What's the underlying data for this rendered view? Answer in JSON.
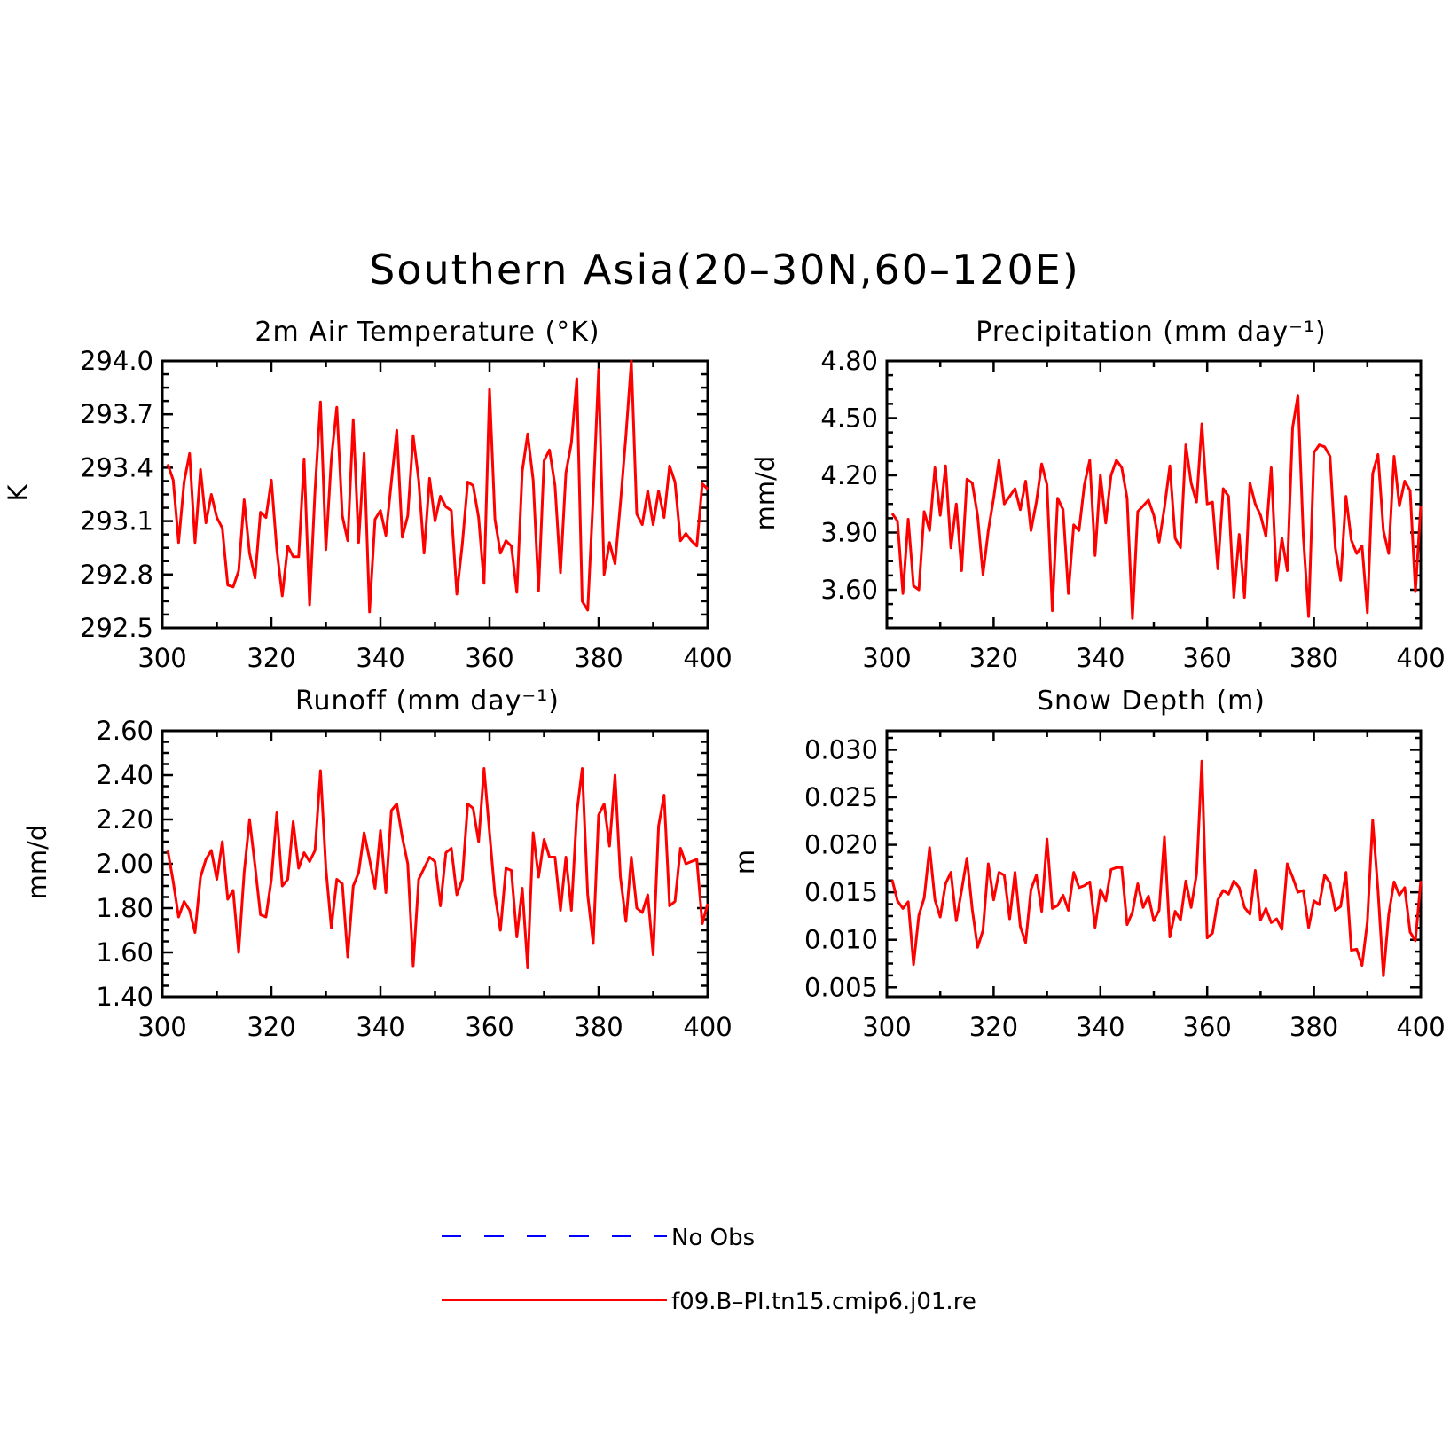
{
  "title": "Southern Asia(20–30N,60–120E)",
  "colors": {
    "model": "#ff0000",
    "obs": "#0000ff"
  },
  "legend": [
    {
      "label": "No Obs",
      "color": "#0000ff",
      "style": "dashed"
    },
    {
      "label": "f09.B–PI.tn15.cmip6.j01.re",
      "color": "#ff0000",
      "style": "solid"
    }
  ],
  "chart_data": [
    {
      "type": "line",
      "title": "2m Air Temperature (°K)",
      "ylabel": "K",
      "xlim": [
        300,
        400
      ],
      "ylim": [
        292.5,
        294.0
      ],
      "xticks": [
        300,
        320,
        340,
        360,
        380,
        400
      ],
      "yticks": [
        292.5,
        292.8,
        293.1,
        293.4,
        293.7,
        294.0
      ],
      "ytick_labels": [
        "292.5",
        "292.8",
        "293.1",
        "293.4",
        "293.7",
        "294.0"
      ],
      "x_start": 301,
      "series": [
        {
          "name": "f09.B–PI.tn15.cmip6.j01.re",
          "values": [
            293.42,
            293.33,
            292.98,
            293.32,
            293.48,
            292.98,
            293.39,
            293.09,
            293.25,
            293.12,
            293.06,
            292.74,
            292.73,
            292.82,
            293.22,
            292.92,
            292.78,
            293.15,
            293.12,
            293.33,
            292.94,
            292.68,
            292.96,
            292.9,
            292.9,
            293.45,
            292.63,
            293.27,
            293.77,
            292.94,
            293.45,
            293.74,
            293.13,
            292.99,
            293.67,
            292.98,
            293.48,
            292.59,
            293.11,
            293.16,
            293.02,
            293.32,
            293.61,
            293.01,
            293.13,
            293.58,
            293.33,
            292.92,
            293.34,
            293.1,
            293.24,
            293.18,
            293.16,
            292.69,
            292.97,
            293.32,
            293.3,
            293.12,
            292.75,
            293.84,
            293.11,
            292.92,
            292.99,
            292.96,
            292.7,
            293.38,
            293.59,
            293.33,
            292.71,
            293.44,
            293.5,
            293.3,
            292.81,
            293.37,
            293.54,
            293.9,
            292.65,
            292.6,
            293.24,
            293.95,
            292.8,
            292.98,
            292.86,
            293.2,
            293.58,
            294.0,
            293.14,
            293.08,
            293.27,
            293.08,
            293.27,
            293.12,
            293.41,
            293.32,
            292.99,
            293.03,
            292.99,
            292.96,
            293.31,
            293.28
          ]
        }
      ]
    },
    {
      "type": "line",
      "title": "Precipitation (mm day⁻¹)",
      "ylabel": "mm/d",
      "xlim": [
        300,
        400
      ],
      "ylim": [
        3.4,
        4.8
      ],
      "xticks": [
        300,
        320,
        340,
        360,
        380,
        400
      ],
      "yticks": [
        3.6,
        3.9,
        4.2,
        4.5,
        4.8
      ],
      "ytick_labels": [
        "3.60",
        "3.90",
        "4.20",
        "4.50",
        "4.80"
      ],
      "x_start": 301,
      "series": [
        {
          "name": "f09.B–PI.tn15.cmip6.j01.re",
          "values": [
            4.0,
            3.96,
            3.58,
            3.97,
            3.62,
            3.6,
            4.01,
            3.91,
            4.24,
            3.99,
            4.25,
            3.82,
            4.05,
            3.7,
            4.18,
            4.16,
            3.99,
            3.68,
            3.91,
            4.08,
            4.28,
            4.05,
            4.09,
            4.13,
            4.02,
            4.17,
            3.91,
            4.06,
            4.26,
            4.15,
            3.49,
            4.08,
            4.02,
            3.58,
            3.94,
            3.91,
            4.15,
            4.28,
            3.78,
            4.2,
            3.95,
            4.2,
            4.28,
            4.24,
            4.08,
            3.45,
            4.01,
            4.04,
            4.07,
            3.99,
            3.85,
            4.03,
            4.25,
            3.87,
            3.82,
            4.36,
            4.16,
            4.06,
            4.47,
            4.05,
            4.06,
            3.71,
            4.13,
            4.09,
            3.56,
            3.89,
            3.56,
            4.16,
            4.05,
            3.99,
            3.88,
            4.24,
            3.65,
            3.87,
            3.7,
            4.45,
            4.62,
            3.88,
            3.46,
            4.32,
            4.36,
            4.35,
            4.3,
            3.82,
            3.65,
            4.09,
            3.86,
            3.79,
            3.83,
            3.48,
            4.21,
            4.31,
            3.91,
            3.79,
            4.3,
            4.04,
            4.17,
            4.12,
            3.59,
            4.04
          ]
        }
      ]
    },
    {
      "type": "line",
      "title": "Runoff (mm day⁻¹)",
      "ylabel": "mm/d",
      "xlim": [
        300,
        400
      ],
      "ylim": [
        1.4,
        2.6
      ],
      "xticks": [
        300,
        320,
        340,
        360,
        380,
        400
      ],
      "yticks": [
        1.4,
        1.6,
        1.8,
        2.0,
        2.2,
        2.4,
        2.6
      ],
      "ytick_labels": [
        "1.40",
        "1.60",
        "1.80",
        "2.00",
        "2.20",
        "2.40",
        "2.60"
      ],
      "x_start": 301,
      "series": [
        {
          "name": "f09.B–PI.tn15.cmip6.j01.re",
          "values": [
            2.06,
            1.92,
            1.76,
            1.83,
            1.79,
            1.69,
            1.94,
            2.02,
            2.06,
            1.93,
            2.1,
            1.84,
            1.88,
            1.6,
            1.96,
            2.2,
            1.99,
            1.77,
            1.76,
            1.93,
            2.23,
            1.9,
            1.93,
            2.19,
            1.98,
            2.05,
            2.01,
            2.06,
            2.42,
            1.98,
            1.71,
            1.93,
            1.91,
            1.58,
            1.9,
            1.96,
            2.14,
            2.02,
            1.89,
            2.15,
            1.87,
            2.24,
            2.27,
            2.12,
            2.0,
            1.54,
            1.93,
            1.98,
            2.03,
            2.01,
            1.81,
            2.05,
            2.07,
            1.86,
            1.93,
            2.27,
            2.25,
            2.1,
            2.43,
            2.14,
            1.86,
            1.7,
            1.98,
            1.97,
            1.67,
            1.89,
            1.53,
            2.14,
            1.94,
            2.11,
            2.03,
            2.03,
            1.79,
            2.03,
            1.79,
            2.23,
            2.43,
            1.86,
            1.64,
            2.22,
            2.27,
            2.08,
            2.4,
            1.94,
            1.74,
            2.03,
            1.8,
            1.78,
            1.86,
            1.59,
            2.17,
            2.31,
            1.81,
            1.83,
            2.07,
            2.0,
            2.01,
            2.02,
            1.73,
            1.82
          ]
        }
      ]
    },
    {
      "type": "line",
      "title": "Snow Depth (m)",
      "ylabel": "m",
      "xlim": [
        300,
        400
      ],
      "ylim": [
        0.004,
        0.032
      ],
      "xticks": [
        300,
        320,
        340,
        360,
        380,
        400
      ],
      "yticks": [
        0.005,
        0.01,
        0.015,
        0.02,
        0.025,
        0.03
      ],
      "ytick_labels": [
        "0.005",
        "0.010",
        "0.015",
        "0.020",
        "0.025",
        "0.030"
      ],
      "x_start": 301,
      "series": [
        {
          "name": "f09.B–PI.tn15.cmip6.j01.re",
          "values": [
            0.0163,
            0.0141,
            0.0133,
            0.014,
            0.0074,
            0.0126,
            0.0144,
            0.0197,
            0.0142,
            0.0124,
            0.0159,
            0.0171,
            0.012,
            0.0152,
            0.0186,
            0.0132,
            0.0092,
            0.011,
            0.018,
            0.0142,
            0.0171,
            0.0168,
            0.0122,
            0.0171,
            0.0114,
            0.0097,
            0.0153,
            0.0168,
            0.013,
            0.0206,
            0.0133,
            0.0136,
            0.0147,
            0.0131,
            0.0171,
            0.0155,
            0.0157,
            0.0161,
            0.0113,
            0.0153,
            0.0141,
            0.0174,
            0.0176,
            0.0176,
            0.0116,
            0.0129,
            0.0159,
            0.0134,
            0.0146,
            0.012,
            0.0131,
            0.0208,
            0.0103,
            0.013,
            0.0121,
            0.0162,
            0.0134,
            0.0169,
            0.0288,
            0.0102,
            0.0107,
            0.0142,
            0.0152,
            0.0148,
            0.0162,
            0.0155,
            0.0134,
            0.0127,
            0.0173,
            0.0121,
            0.0133,
            0.0118,
            0.0122,
            0.0111,
            0.018,
            0.0166,
            0.015,
            0.0152,
            0.0113,
            0.0141,
            0.0137,
            0.0168,
            0.016,
            0.0131,
            0.0135,
            0.0171,
            0.0089,
            0.009,
            0.0073,
            0.0119,
            0.0226,
            0.0152,
            0.0062,
            0.0127,
            0.0161,
            0.0147,
            0.0155,
            0.0108,
            0.0099,
            0.0162
          ]
        }
      ]
    }
  ]
}
